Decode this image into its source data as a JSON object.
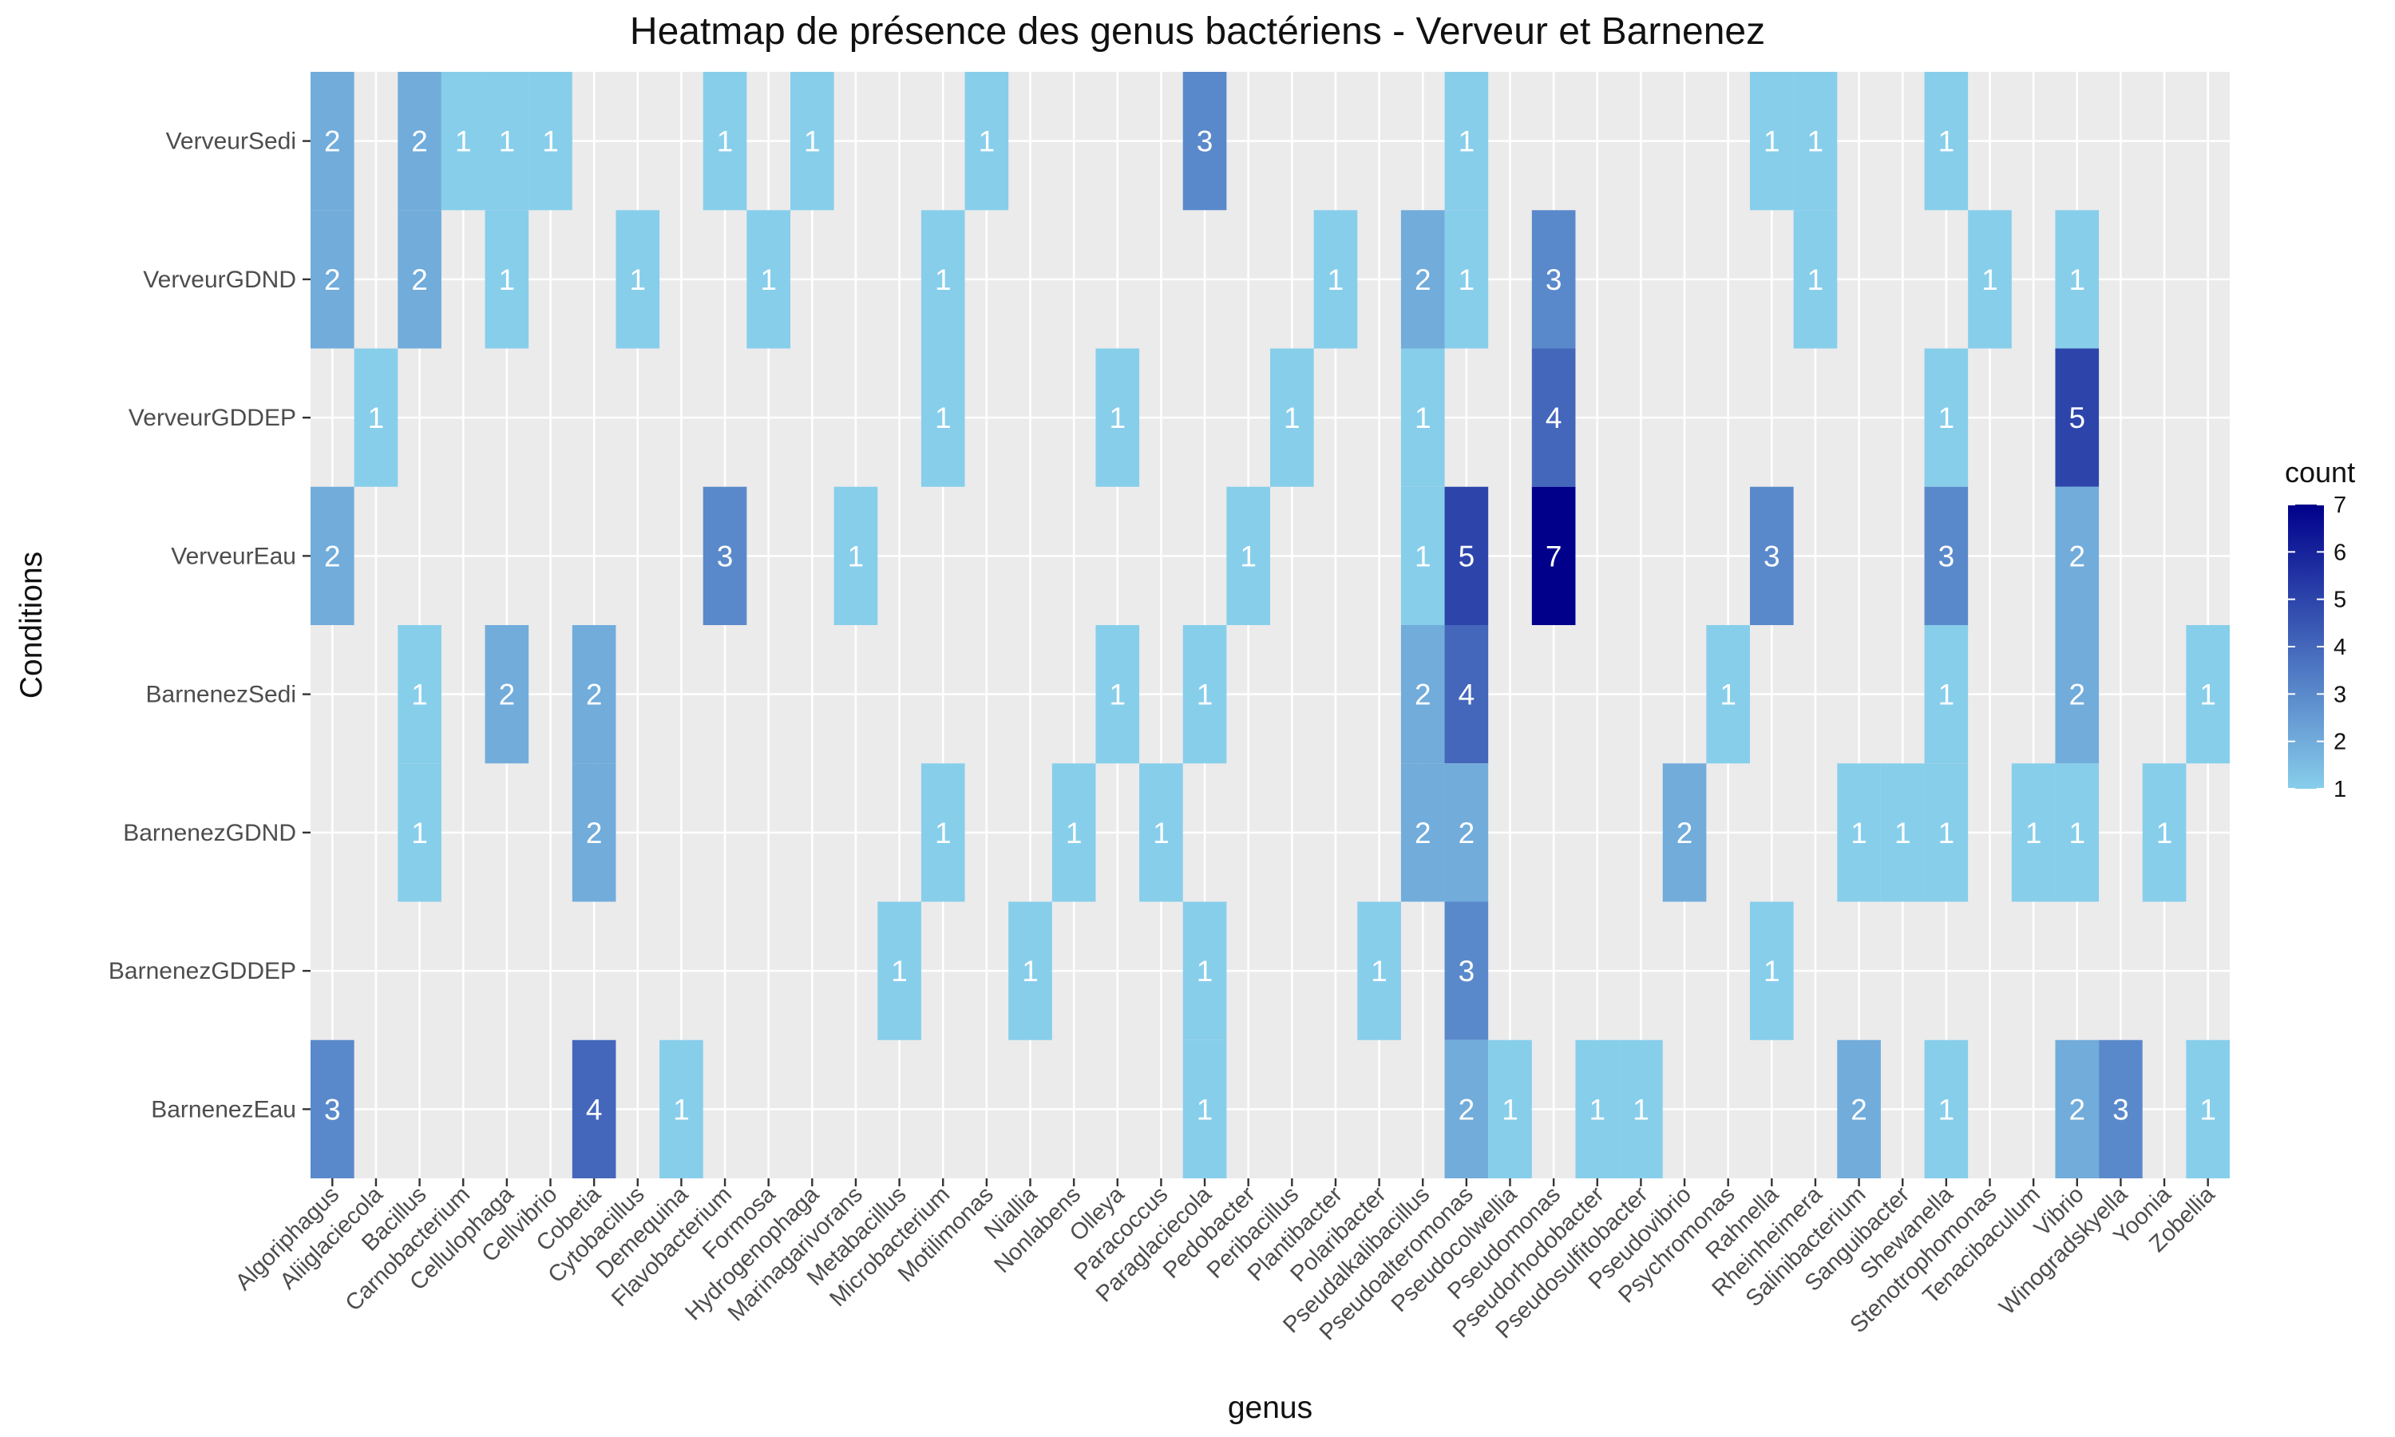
{
  "chart_data": {
    "type": "heatmap",
    "title": "Heatmap de présence des genus bactériens - Verveur et Barnenez",
    "xlabel": "genus",
    "ylabel": "Conditions",
    "legend": {
      "title": "count",
      "position": "right",
      "ticks": [
        1,
        2,
        3,
        4,
        5,
        6,
        7
      ],
      "low_color": "#87CEEB",
      "high_color": "#00008B"
    },
    "grid": true,
    "x_categories": [
      "Algoriphagus",
      "Aliiglaciecola",
      "Bacillus",
      "Carnobacterium",
      "Cellulophaga",
      "Cellvibrio",
      "Cobetia",
      "Cytobacillus",
      "Demequina",
      "Flavobacterium",
      "Formosa",
      "Hydrogenophaga",
      "Marinagarivorans",
      "Metabacillus",
      "Microbacterium",
      "Motilimonas",
      "Niallia",
      "Nonlabens",
      "Olleya",
      "Paracoccus",
      "Paraglaciecola",
      "Pedobacter",
      "Peribacillus",
      "Plantibacter",
      "Polaribacter",
      "Pseudalkalibacillus",
      "Pseudoalteromonas",
      "Pseudocolwellia",
      "Pseudomonas",
      "Pseudorhodobacter",
      "Pseudosulfitobacter",
      "Pseudovibrio",
      "Psychromonas",
      "Rahnella",
      "Rheinheimera",
      "Salinibacterium",
      "Sanguibacter",
      "Shewanella",
      "Stenotrophomonas",
      "Tenacibaculum",
      "Vibrio",
      "Winogradskyella",
      "Yoonia",
      "Zobellia"
    ],
    "y_categories": [
      "VerveurSedi",
      "VerveurGDND",
      "VerveurGDDEP",
      "VerveurEau",
      "BarnenezSedi",
      "BarnenezGDND",
      "BarnenezGDDEP",
      "BarnenezEau"
    ],
    "cells": [
      {
        "x": "Algoriphagus",
        "y": "VerveurSedi",
        "v": 2
      },
      {
        "x": "Bacillus",
        "y": "VerveurSedi",
        "v": 2
      },
      {
        "x": "Carnobacterium",
        "y": "VerveurSedi",
        "v": 1
      },
      {
        "x": "Cellulophaga",
        "y": "VerveurSedi",
        "v": 1
      },
      {
        "x": "Cellvibrio",
        "y": "VerveurSedi",
        "v": 1
      },
      {
        "x": "Flavobacterium",
        "y": "VerveurSedi",
        "v": 1
      },
      {
        "x": "Hydrogenophaga",
        "y": "VerveurSedi",
        "v": 1
      },
      {
        "x": "Motilimonas",
        "y": "VerveurSedi",
        "v": 1
      },
      {
        "x": "Paraglaciecola",
        "y": "VerveurSedi",
        "v": 3
      },
      {
        "x": "Pseudoalteromonas",
        "y": "VerveurSedi",
        "v": 1
      },
      {
        "x": "Rahnella",
        "y": "VerveurSedi",
        "v": 1
      },
      {
        "x": "Rheinheimera",
        "y": "VerveurSedi",
        "v": 1
      },
      {
        "x": "Shewanella",
        "y": "VerveurSedi",
        "v": 1
      },
      {
        "x": "Algoriphagus",
        "y": "VerveurGDND",
        "v": 2
      },
      {
        "x": "Bacillus",
        "y": "VerveurGDND",
        "v": 2
      },
      {
        "x": "Cellulophaga",
        "y": "VerveurGDND",
        "v": 1
      },
      {
        "x": "Cytobacillus",
        "y": "VerveurGDND",
        "v": 1
      },
      {
        "x": "Formosa",
        "y": "VerveurGDND",
        "v": 1
      },
      {
        "x": "Microbacterium",
        "y": "VerveurGDND",
        "v": 1
      },
      {
        "x": "Plantibacter",
        "y": "VerveurGDND",
        "v": 1
      },
      {
        "x": "Pseudalkalibacillus",
        "y": "VerveurGDND",
        "v": 2
      },
      {
        "x": "Pseudoalteromonas",
        "y": "VerveurGDND",
        "v": 1
      },
      {
        "x": "Pseudomonas",
        "y": "VerveurGDND",
        "v": 3
      },
      {
        "x": "Rheinheimera",
        "y": "VerveurGDND",
        "v": 1
      },
      {
        "x": "Stenotrophomonas",
        "y": "VerveurGDND",
        "v": 1
      },
      {
        "x": "Vibrio",
        "y": "VerveurGDND",
        "v": 1
      },
      {
        "x": "Aliiglaciecola",
        "y": "VerveurGDDEP",
        "v": 1
      },
      {
        "x": "Microbacterium",
        "y": "VerveurGDDEP",
        "v": 1
      },
      {
        "x": "Olleya",
        "y": "VerveurGDDEP",
        "v": 1
      },
      {
        "x": "Peribacillus",
        "y": "VerveurGDDEP",
        "v": 1
      },
      {
        "x": "Pseudalkalibacillus",
        "y": "VerveurGDDEP",
        "v": 1
      },
      {
        "x": "Pseudomonas",
        "y": "VerveurGDDEP",
        "v": 4
      },
      {
        "x": "Shewanella",
        "y": "VerveurGDDEP",
        "v": 1
      },
      {
        "x": "Vibrio",
        "y": "VerveurGDDEP",
        "v": 5
      },
      {
        "x": "Algoriphagus",
        "y": "VerveurEau",
        "v": 2
      },
      {
        "x": "Flavobacterium",
        "y": "VerveurEau",
        "v": 3
      },
      {
        "x": "Marinagarivorans",
        "y": "VerveurEau",
        "v": 1
      },
      {
        "x": "Pedobacter",
        "y": "VerveurEau",
        "v": 1
      },
      {
        "x": "Pseudalkalibacillus",
        "y": "VerveurEau",
        "v": 1
      },
      {
        "x": "Pseudoalteromonas",
        "y": "VerveurEau",
        "v": 5
      },
      {
        "x": "Pseudomonas",
        "y": "VerveurEau",
        "v": 7
      },
      {
        "x": "Rahnella",
        "y": "VerveurEau",
        "v": 3
      },
      {
        "x": "Shewanella",
        "y": "VerveurEau",
        "v": 3
      },
      {
        "x": "Vibrio",
        "y": "VerveurEau",
        "v": 2
      },
      {
        "x": "Bacillus",
        "y": "BarnenezSedi",
        "v": 1
      },
      {
        "x": "Cellulophaga",
        "y": "BarnenezSedi",
        "v": 2
      },
      {
        "x": "Cobetia",
        "y": "BarnenezSedi",
        "v": 2
      },
      {
        "x": "Olleya",
        "y": "BarnenezSedi",
        "v": 1
      },
      {
        "x": "Paraglaciecola",
        "y": "BarnenezSedi",
        "v": 1
      },
      {
        "x": "Pseudalkalibacillus",
        "y": "BarnenezSedi",
        "v": 2
      },
      {
        "x": "Pseudoalteromonas",
        "y": "BarnenezSedi",
        "v": 4
      },
      {
        "x": "Psychromonas",
        "y": "BarnenezSedi",
        "v": 1
      },
      {
        "x": "Shewanella",
        "y": "BarnenezSedi",
        "v": 1
      },
      {
        "x": "Vibrio",
        "y": "BarnenezSedi",
        "v": 2
      },
      {
        "x": "Zobellia",
        "y": "BarnenezSedi",
        "v": 1
      },
      {
        "x": "Bacillus",
        "y": "BarnenezGDND",
        "v": 1
      },
      {
        "x": "Cobetia",
        "y": "BarnenezGDND",
        "v": 2
      },
      {
        "x": "Microbacterium",
        "y": "BarnenezGDND",
        "v": 1
      },
      {
        "x": "Nonlabens",
        "y": "BarnenezGDND",
        "v": 1
      },
      {
        "x": "Paracoccus",
        "y": "BarnenezGDND",
        "v": 1
      },
      {
        "x": "Pseudalkalibacillus",
        "y": "BarnenezGDND",
        "v": 2
      },
      {
        "x": "Pseudoalteromonas",
        "y": "BarnenezGDND",
        "v": 2
      },
      {
        "x": "Pseudovibrio",
        "y": "BarnenezGDND",
        "v": 2
      },
      {
        "x": "Salinibacterium",
        "y": "BarnenezGDND",
        "v": 1
      },
      {
        "x": "Sanguibacter",
        "y": "BarnenezGDND",
        "v": 1
      },
      {
        "x": "Shewanella",
        "y": "BarnenezGDND",
        "v": 1
      },
      {
        "x": "Tenacibaculum",
        "y": "BarnenezGDND",
        "v": 1
      },
      {
        "x": "Vibrio",
        "y": "BarnenezGDND",
        "v": 1
      },
      {
        "x": "Yoonia",
        "y": "BarnenezGDND",
        "v": 1
      },
      {
        "x": "Metabacillus",
        "y": "BarnenezGDDEP",
        "v": 1
      },
      {
        "x": "Niallia",
        "y": "BarnenezGDDEP",
        "v": 1
      },
      {
        "x": "Paraglaciecola",
        "y": "BarnenezGDDEP",
        "v": 1
      },
      {
        "x": "Polaribacter",
        "y": "BarnenezGDDEP",
        "v": 1
      },
      {
        "x": "Pseudoalteromonas",
        "y": "BarnenezGDDEP",
        "v": 3
      },
      {
        "x": "Rahnella",
        "y": "BarnenezGDDEP",
        "v": 1
      },
      {
        "x": "Algoriphagus",
        "y": "BarnenezEau",
        "v": 3
      },
      {
        "x": "Cobetia",
        "y": "BarnenezEau",
        "v": 4
      },
      {
        "x": "Demequina",
        "y": "BarnenezEau",
        "v": 1
      },
      {
        "x": "Paraglaciecola",
        "y": "BarnenezEau",
        "v": 1
      },
      {
        "x": "Pseudoalteromonas",
        "y": "BarnenezEau",
        "v": 2
      },
      {
        "x": "Pseudocolwellia",
        "y": "BarnenezEau",
        "v": 1
      },
      {
        "x": "Pseudorhodobacter",
        "y": "BarnenezEau",
        "v": 1
      },
      {
        "x": "Pseudosulfitobacter",
        "y": "BarnenezEau",
        "v": 1
      },
      {
        "x": "Salinibacterium",
        "y": "BarnenezEau",
        "v": 2
      },
      {
        "x": "Shewanella",
        "y": "BarnenezEau",
        "v": 1
      },
      {
        "x": "Vibrio",
        "y": "BarnenezEau",
        "v": 2
      },
      {
        "x": "Winogradskyella",
        "y": "BarnenezEau",
        "v": 3
      },
      {
        "x": "Zobellia",
        "y": "BarnenezEau",
        "v": 1
      }
    ]
  }
}
